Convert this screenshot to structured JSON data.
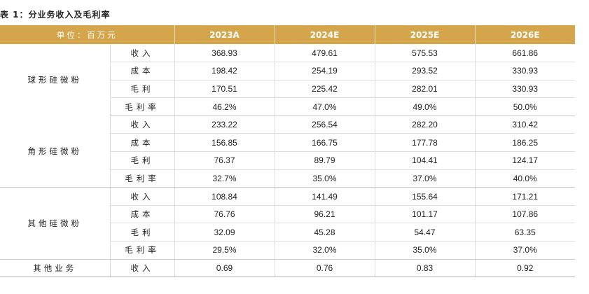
{
  "caption": "表 1：分业务收入及毛利率",
  "header": {
    "unit": "单位：百万元",
    "years": [
      "2023A",
      "2024E",
      "2025E",
      "2026E"
    ]
  },
  "groups": [
    {
      "name": "球形硅微粉",
      "rows": [
        {
          "item": "收入",
          "values": [
            "368.93",
            "479.61",
            "575.53",
            "661.86"
          ]
        },
        {
          "item": "成本",
          "values": [
            "198.42",
            "254.19",
            "293.52",
            "330.93"
          ]
        },
        {
          "item": "毛利",
          "values": [
            "170.51",
            "225.42",
            "282.01",
            "330.93"
          ]
        },
        {
          "item": "毛利率",
          "values": [
            "46.2%",
            "47.0%",
            "49.0%",
            "50.0%"
          ]
        }
      ]
    },
    {
      "name": "角形硅微粉",
      "rows": [
        {
          "item": "收入",
          "values": [
            "233.22",
            "256.54",
            "282.20",
            "310.42"
          ]
        },
        {
          "item": "成本",
          "values": [
            "156.85",
            "166.75",
            "177.78",
            "186.25"
          ]
        },
        {
          "item": "毛利",
          "values": [
            "76.37",
            "89.79",
            "104.41",
            "124.17"
          ]
        },
        {
          "item": "毛利率",
          "values": [
            "32.7%",
            "35.0%",
            "37.0%",
            "40.0%"
          ]
        }
      ]
    },
    {
      "name": "其他硅微粉",
      "rows": [
        {
          "item": "收入",
          "values": [
            "108.84",
            "141.49",
            "155.64",
            "171.21"
          ]
        },
        {
          "item": "成本",
          "values": [
            "76.76",
            "96.21",
            "101.17",
            "107.86"
          ]
        },
        {
          "item": "毛利",
          "values": [
            "32.09",
            "45.28",
            "54.47",
            "63.35"
          ]
        },
        {
          "item": "毛利率",
          "values": [
            "29.5%",
            "32.0%",
            "35.0%",
            "37.0%"
          ]
        }
      ]
    },
    {
      "name": "其他业务",
      "rows": [
        {
          "item": "收入",
          "values": [
            "0.69",
            "0.76",
            "0.83",
            "0.92"
          ]
        }
      ]
    }
  ]
}
